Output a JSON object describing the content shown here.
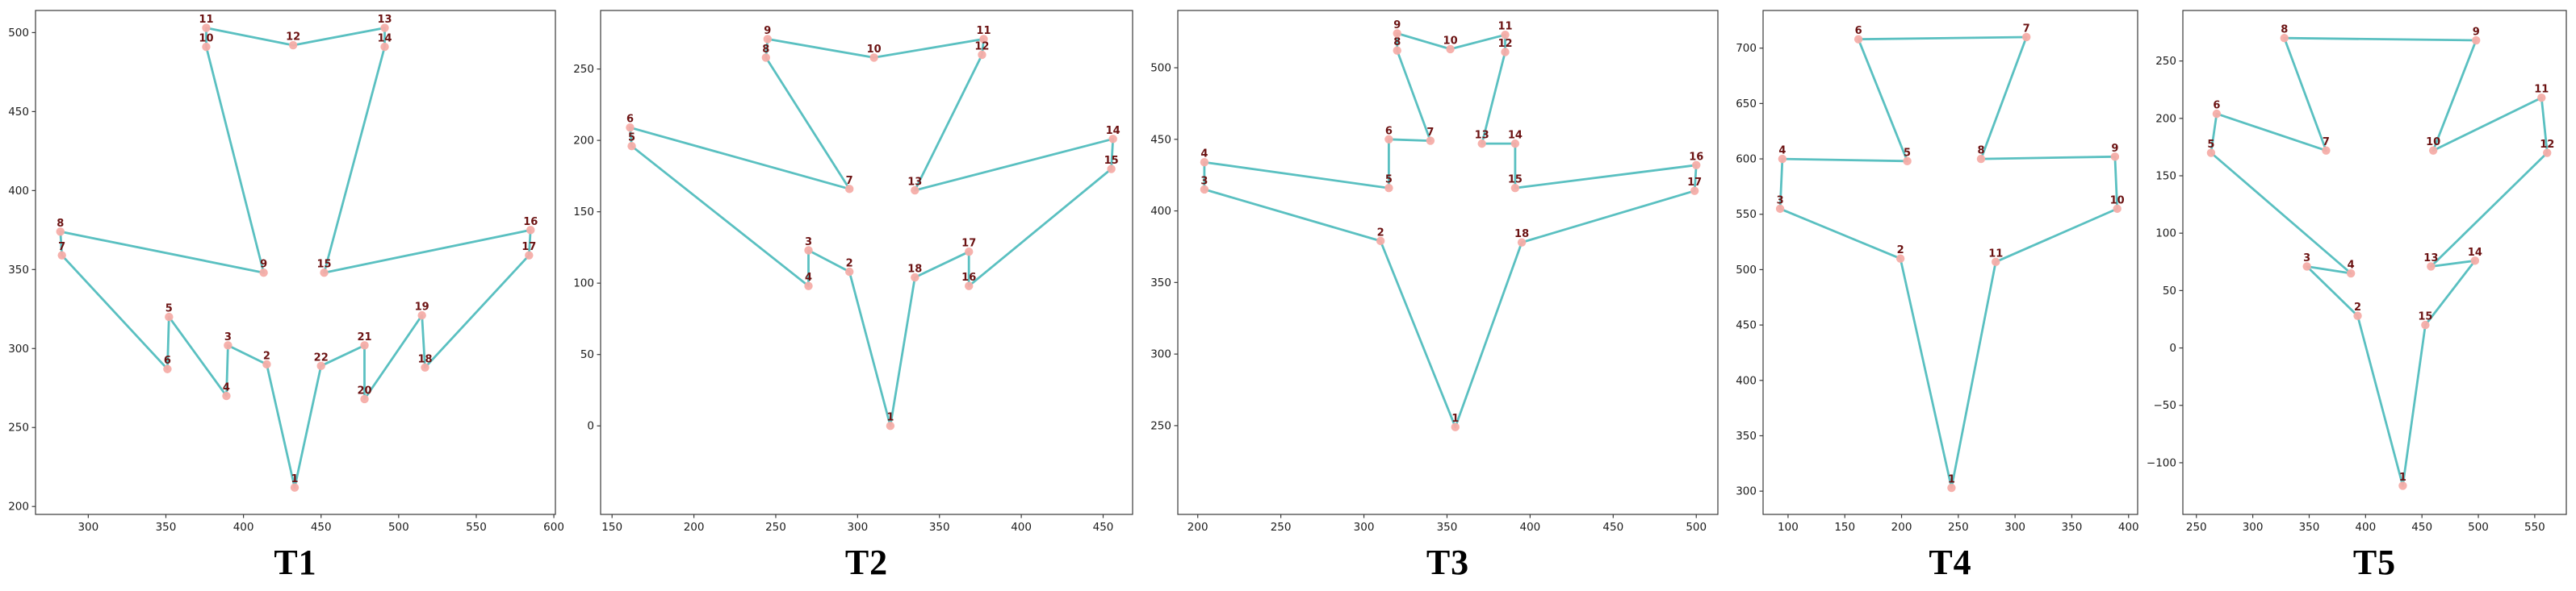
{
  "style": {
    "background": "#ffffff",
    "line_color": "#5ac0c1",
    "marker_fill": "#f5ada8",
    "point_label_color": "#6b1212",
    "tick_label_color": "#1c1c1c",
    "spine_color": "#3a3a3a",
    "title_color": "#000000"
  },
  "chart_data": [
    {
      "id": "t1",
      "title": "T1",
      "type": "line",
      "closed_loop": true,
      "grid": false,
      "legend": null,
      "xlim": [
        266,
        601
      ],
      "ylim": [
        195,
        514
      ],
      "xticks": [
        300,
        350,
        400,
        450,
        500,
        550,
        600
      ],
      "yticks": [
        200,
        250,
        300,
        350,
        400,
        450,
        500
      ],
      "points": [
        {
          "label": "1",
          "x": 433,
          "y": 212
        },
        {
          "label": "2",
          "x": 415,
          "y": 290
        },
        {
          "label": "3",
          "x": 390,
          "y": 302
        },
        {
          "label": "4",
          "x": 389,
          "y": 270
        },
        {
          "label": "5",
          "x": 352,
          "y": 320
        },
        {
          "label": "6",
          "x": 351,
          "y": 287
        },
        {
          "label": "7",
          "x": 283,
          "y": 359
        },
        {
          "label": "8",
          "x": 282,
          "y": 374
        },
        {
          "label": "9",
          "x": 413,
          "y": 348
        },
        {
          "label": "10",
          "x": 376,
          "y": 491
        },
        {
          "label": "11",
          "x": 376,
          "y": 503
        },
        {
          "label": "12",
          "x": 432,
          "y": 492
        },
        {
          "label": "13",
          "x": 491,
          "y": 503
        },
        {
          "label": "14",
          "x": 491,
          "y": 491
        },
        {
          "label": "15",
          "x": 452,
          "y": 348
        },
        {
          "label": "16",
          "x": 585,
          "y": 375
        },
        {
          "label": "17",
          "x": 584,
          "y": 359
        },
        {
          "label": "18",
          "x": 517,
          "y": 288
        },
        {
          "label": "19",
          "x": 515,
          "y": 321
        },
        {
          "label": "20",
          "x": 478,
          "y": 268
        },
        {
          "label": "21",
          "x": 478,
          "y": 302
        },
        {
          "label": "22",
          "x": 450,
          "y": 289
        }
      ]
    },
    {
      "id": "t2",
      "title": "T2",
      "type": "line",
      "closed_loop": true,
      "grid": false,
      "legend": null,
      "xlim": [
        143,
        468
      ],
      "ylim": [
        -62,
        291
      ],
      "xticks": [
        150,
        200,
        250,
        300,
        350,
        400,
        450
      ],
      "yticks": [
        0,
        50,
        100,
        150,
        200,
        250
      ],
      "points": [
        {
          "label": "1",
          "x": 320,
          "y": 0
        },
        {
          "label": "2",
          "x": 295,
          "y": 108
        },
        {
          "label": "3",
          "x": 270,
          "y": 123
        },
        {
          "label": "4",
          "x": 270,
          "y": 98
        },
        {
          "label": "5",
          "x": 162,
          "y": 196
        },
        {
          "label": "6",
          "x": 161,
          "y": 209
        },
        {
          "label": "7",
          "x": 295,
          "y": 166
        },
        {
          "label": "8",
          "x": 244,
          "y": 258
        },
        {
          "label": "9",
          "x": 245,
          "y": 271
        },
        {
          "label": "10",
          "x": 310,
          "y": 258
        },
        {
          "label": "11",
          "x": 377,
          "y": 271
        },
        {
          "label": "12",
          "x": 376,
          "y": 260
        },
        {
          "label": "13",
          "x": 335,
          "y": 165
        },
        {
          "label": "14",
          "x": 456,
          "y": 201
        },
        {
          "label": "15",
          "x": 455,
          "y": 180
        },
        {
          "label": "16",
          "x": 368,
          "y": 98
        },
        {
          "label": "17",
          "x": 368,
          "y": 122
        },
        {
          "label": "18",
          "x": 335,
          "y": 104
        }
      ]
    },
    {
      "id": "t3",
      "title": "T3",
      "type": "line",
      "closed_loop": true,
      "grid": false,
      "legend": null,
      "xlim": [
        188,
        513
      ],
      "ylim": [
        188,
        540
      ],
      "xticks": [
        200,
        250,
        300,
        350,
        400,
        450,
        500
      ],
      "yticks": [
        250,
        300,
        350,
        400,
        450,
        500
      ],
      "points": [
        {
          "label": "1",
          "x": 355,
          "y": 249
        },
        {
          "label": "2",
          "x": 310,
          "y": 379
        },
        {
          "label": "3",
          "x": 204,
          "y": 415
        },
        {
          "label": "4",
          "x": 204,
          "y": 434
        },
        {
          "label": "5",
          "x": 315,
          "y": 416
        },
        {
          "label": "6",
          "x": 315,
          "y": 450
        },
        {
          "label": "7",
          "x": 340,
          "y": 449
        },
        {
          "label": "8",
          "x": 320,
          "y": 512
        },
        {
          "label": "9",
          "x": 320,
          "y": 524
        },
        {
          "label": "10",
          "x": 352,
          "y": 513
        },
        {
          "label": "11",
          "x": 385,
          "y": 523
        },
        {
          "label": "12",
          "x": 385,
          "y": 511
        },
        {
          "label": "13",
          "x": 371,
          "y": 447
        },
        {
          "label": "14",
          "x": 391,
          "y": 447
        },
        {
          "label": "15",
          "x": 391,
          "y": 416
        },
        {
          "label": "16",
          "x": 500,
          "y": 432
        },
        {
          "label": "17",
          "x": 499,
          "y": 414
        },
        {
          "label": "18",
          "x": 395,
          "y": 378
        }
      ]
    },
    {
      "id": "t4",
      "title": "T4",
      "type": "line",
      "closed_loop": true,
      "grid": false,
      "legend": null,
      "xlim": [
        78,
        408
      ],
      "ylim": [
        279,
        734
      ],
      "xticks": [
        100,
        150,
        200,
        250,
        300,
        350,
        400
      ],
      "yticks": [
        300,
        350,
        400,
        450,
        500,
        550,
        600,
        650,
        700
      ],
      "points": [
        {
          "label": "1",
          "x": 244,
          "y": 303
        },
        {
          "label": "2",
          "x": 199,
          "y": 510
        },
        {
          "label": "3",
          "x": 93,
          "y": 555
        },
        {
          "label": "4",
          "x": 95,
          "y": 600
        },
        {
          "label": "5",
          "x": 205,
          "y": 598
        },
        {
          "label": "6",
          "x": 162,
          "y": 708
        },
        {
          "label": "7",
          "x": 310,
          "y": 710
        },
        {
          "label": "8",
          "x": 270,
          "y": 600
        },
        {
          "label": "9",
          "x": 388,
          "y": 602
        },
        {
          "label": "10",
          "x": 390,
          "y": 555
        },
        {
          "label": "11",
          "x": 283,
          "y": 507
        }
      ]
    },
    {
      "id": "t5",
      "title": "T5",
      "type": "line",
      "closed_loop": true,
      "grid": false,
      "legend": null,
      "xlim": [
        238,
        578
      ],
      "ylim": [
        -145,
        294
      ],
      "xticks": [
        250,
        300,
        350,
        400,
        450,
        500,
        550
      ],
      "yticks": [
        -100,
        -50,
        0,
        50,
        100,
        150,
        200,
        250
      ],
      "points": [
        {
          "label": "1",
          "x": 433,
          "y": -120
        },
        {
          "label": "2",
          "x": 393,
          "y": 28
        },
        {
          "label": "3",
          "x": 348,
          "y": 71
        },
        {
          "label": "4",
          "x": 387,
          "y": 65
        },
        {
          "label": "5",
          "x": 263,
          "y": 170
        },
        {
          "label": "6",
          "x": 268,
          "y": 204
        },
        {
          "label": "7",
          "x": 365,
          "y": 172
        },
        {
          "label": "8",
          "x": 328,
          "y": 270
        },
        {
          "label": "9",
          "x": 498,
          "y": 268
        },
        {
          "label": "10",
          "x": 460,
          "y": 172
        },
        {
          "label": "11",
          "x": 556,
          "y": 218
        },
        {
          "label": "12",
          "x": 561,
          "y": 170
        },
        {
          "label": "13",
          "x": 458,
          "y": 71
        },
        {
          "label": "14",
          "x": 497,
          "y": 76
        },
        {
          "label": "15",
          "x": 453,
          "y": 20
        }
      ]
    }
  ]
}
